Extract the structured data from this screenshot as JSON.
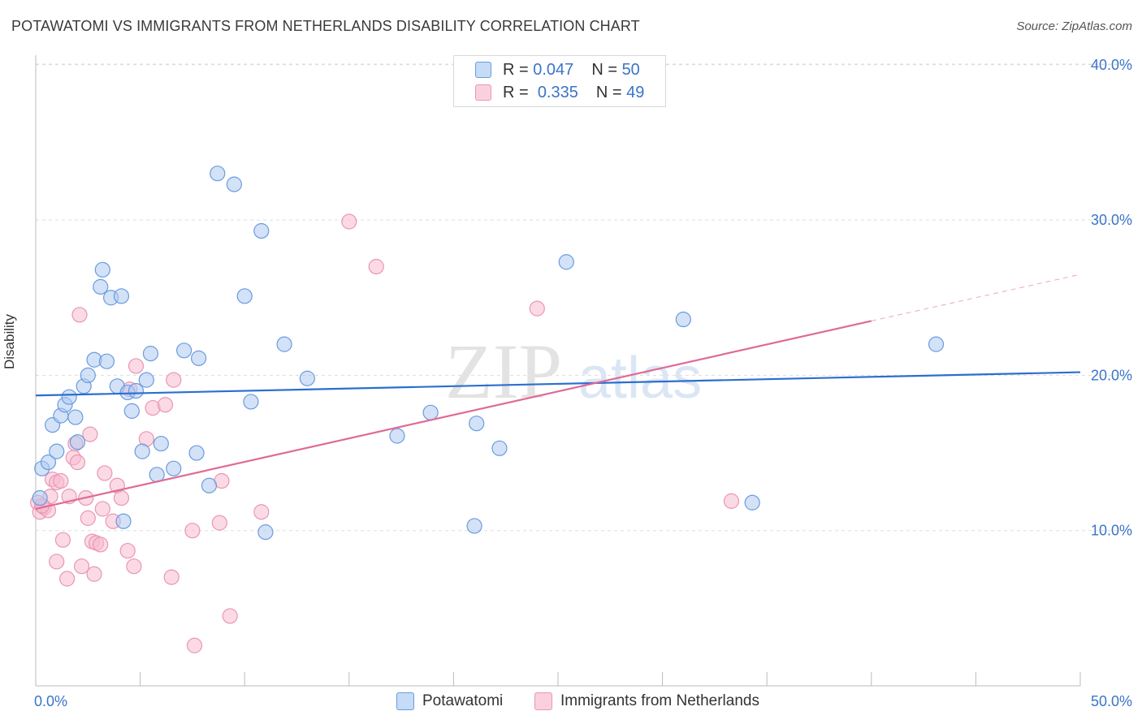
{
  "title": "POTAWATOMI VS IMMIGRANTS FROM NETHERLANDS DISABILITY CORRELATION CHART",
  "source": "Source: ZipAtlas.com",
  "watermark": {
    "zip": "ZIP",
    "atlas": "atlas"
  },
  "legend": {
    "rows": [
      {
        "r_label": "R =",
        "r_value": "0.047",
        "n_label": "N =",
        "n_value": "50"
      },
      {
        "r_label": "R =",
        "r_value": "0.335",
        "n_label": "N =",
        "n_value": "49"
      }
    ],
    "bottom": [
      "Potawatomi",
      "Immigrants from Netherlands"
    ]
  },
  "colors": {
    "blue_fill": "#aecbf1",
    "blue_stroke": "#6a9be0",
    "blue_line": "#2a6fcf",
    "pink_fill": "#f8bcd0",
    "pink_stroke": "#e996b3",
    "pink_line": "#e06a94",
    "axis_text": "#3a74c9",
    "grid": "#dddddd"
  },
  "chart_data": {
    "type": "scatter",
    "title": "POTAWATOMI VS IMMIGRANTS FROM NETHERLANDS DISABILITY CORRELATION CHART",
    "xlabel": "",
    "ylabel": "Disability",
    "xlim": [
      0,
      50
    ],
    "ylim": [
      0,
      42
    ],
    "x_tick_labels": [
      "0.0%",
      "50.0%"
    ],
    "y_ticks": [
      10,
      20,
      30,
      40
    ],
    "y_tick_labels": [
      "10.0%",
      "20.0%",
      "30.0%",
      "40.0%"
    ],
    "grid": true,
    "legend_position": "top-center",
    "series": [
      {
        "name": "Potawatomi",
        "r": 0.047,
        "n": 50,
        "trend": {
          "x": [
            0,
            50
          ],
          "y": [
            18.7,
            20.2
          ]
        },
        "points": [
          [
            0.2,
            12.1
          ],
          [
            0.3,
            14.0
          ],
          [
            0.6,
            14.4
          ],
          [
            0.8,
            16.8
          ],
          [
            1.0,
            15.1
          ],
          [
            1.2,
            17.4
          ],
          [
            1.4,
            18.1
          ],
          [
            1.6,
            18.6
          ],
          [
            1.9,
            17.3
          ],
          [
            2.0,
            15.7
          ],
          [
            2.3,
            19.3
          ],
          [
            2.5,
            20.0
          ],
          [
            2.8,
            21.0
          ],
          [
            3.1,
            25.7
          ],
          [
            3.2,
            26.8
          ],
          [
            3.4,
            20.9
          ],
          [
            3.6,
            25.0
          ],
          [
            3.9,
            19.3
          ],
          [
            4.1,
            25.1
          ],
          [
            4.2,
            10.6
          ],
          [
            4.4,
            18.9
          ],
          [
            4.6,
            17.7
          ],
          [
            4.8,
            19.0
          ],
          [
            5.1,
            15.1
          ],
          [
            5.3,
            19.7
          ],
          [
            5.5,
            21.4
          ],
          [
            5.8,
            13.6
          ],
          [
            6.0,
            15.6
          ],
          [
            6.6,
            14.0
          ],
          [
            7.1,
            21.6
          ],
          [
            7.7,
            15.0
          ],
          [
            7.8,
            21.1
          ],
          [
            8.3,
            12.9
          ],
          [
            8.7,
            33.0
          ],
          [
            9.5,
            32.3
          ],
          [
            10.0,
            25.1
          ],
          [
            10.3,
            18.3
          ],
          [
            10.8,
            29.3
          ],
          [
            11.0,
            9.9
          ],
          [
            11.9,
            22.0
          ],
          [
            13.0,
            19.8
          ],
          [
            17.3,
            16.1
          ],
          [
            18.9,
            17.6
          ],
          [
            21.0,
            10.3
          ],
          [
            21.1,
            16.9
          ],
          [
            22.2,
            15.3
          ],
          [
            25.4,
            27.3
          ],
          [
            31.0,
            23.6
          ],
          [
            34.3,
            11.8
          ],
          [
            43.1,
            22.0
          ]
        ]
      },
      {
        "name": "Immigrants from Netherlands",
        "r": 0.335,
        "n": 49,
        "trend": {
          "x": [
            0,
            40
          ],
          "y": [
            11.4,
            23.5
          ]
        },
        "trend_dashed": {
          "x": [
            40,
            50
          ],
          "y": [
            23.5,
            26.5
          ]
        },
        "points": [
          [
            0.1,
            11.8
          ],
          [
            0.2,
            11.2
          ],
          [
            0.4,
            11.5
          ],
          [
            0.6,
            11.3
          ],
          [
            0.7,
            12.2
          ],
          [
            0.8,
            13.3
          ],
          [
            1.0,
            13.1
          ],
          [
            1.0,
            8.0
          ],
          [
            1.3,
            9.4
          ],
          [
            1.5,
            6.9
          ],
          [
            1.6,
            12.2
          ],
          [
            1.8,
            14.7
          ],
          [
            1.9,
            15.6
          ],
          [
            2.0,
            14.4
          ],
          [
            2.1,
            23.9
          ],
          [
            2.2,
            7.7
          ],
          [
            2.4,
            12.1
          ],
          [
            2.5,
            10.8
          ],
          [
            2.6,
            16.2
          ],
          [
            2.7,
            9.3
          ],
          [
            2.8,
            7.2
          ],
          [
            2.9,
            9.2
          ],
          [
            3.1,
            9.1
          ],
          [
            3.2,
            11.4
          ],
          [
            3.3,
            13.7
          ],
          [
            3.7,
            10.6
          ],
          [
            3.9,
            12.9
          ],
          [
            4.1,
            12.1
          ],
          [
            4.4,
            8.7
          ],
          [
            4.5,
            19.1
          ],
          [
            4.7,
            7.7
          ],
          [
            4.8,
            20.6
          ],
          [
            5.3,
            15.9
          ],
          [
            5.6,
            17.9
          ],
          [
            6.2,
            18.1
          ],
          [
            6.5,
            7.0
          ],
          [
            6.6,
            19.7
          ],
          [
            7.5,
            10.0
          ],
          [
            7.6,
            2.6
          ],
          [
            8.8,
            10.5
          ],
          [
            8.9,
            13.2
          ],
          [
            9.3,
            4.5
          ],
          [
            10.8,
            11.2
          ],
          [
            15.0,
            29.9
          ],
          [
            16.3,
            27.0
          ],
          [
            24.0,
            24.3
          ],
          [
            33.3,
            11.9
          ],
          [
            0.3,
            11.6
          ],
          [
            1.2,
            13.2
          ]
        ]
      }
    ]
  }
}
